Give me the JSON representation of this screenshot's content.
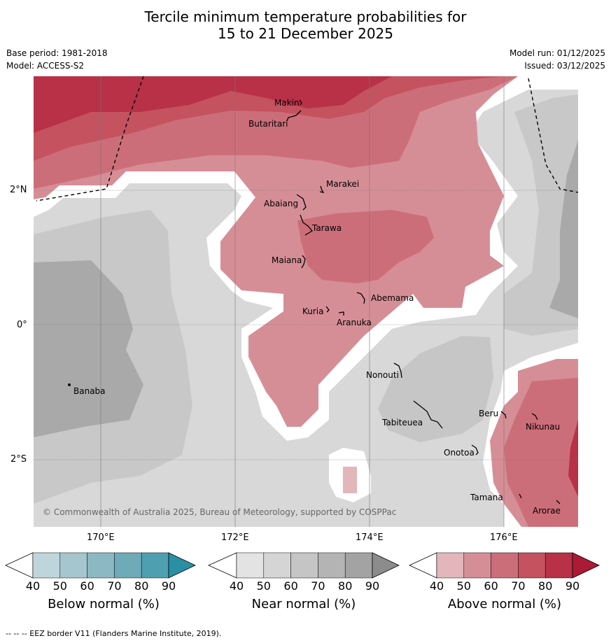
{
  "title": {
    "line1": "Tercile minimum temperature probabilities for",
    "line2": "15 to 21 December 2025"
  },
  "meta": {
    "base_period": "Base period: 1981-2018",
    "model": "Model: ACCESS-S2",
    "model_run": "Model run: 01/12/2025",
    "issued": "Issued: 03/12/2025"
  },
  "axes": {
    "lat_labels": [
      "2°N",
      "0°",
      "2°S"
    ],
    "lon_labels": [
      "170°E",
      "172°E",
      "174°E",
      "176°E"
    ]
  },
  "places": [
    "Makin",
    "Butaritari",
    "Marakei",
    "Abaiang",
    "Tarawa",
    "Maiana",
    "Abemama",
    "Kuria",
    "Aranuka",
    "Banaba",
    "Nonouti",
    "Tabiteuea",
    "Beru",
    "Nikunau",
    "Onotoa",
    "Tamana",
    "Arorae"
  ],
  "copyright": "© Commonwealth of Australia 2025, Bureau of Meteorology, supported by COSPPac",
  "colorbars": [
    {
      "label": "Below normal (%)",
      "ticks": [
        "40",
        "50",
        "60",
        "70",
        "80",
        "90"
      ],
      "colors": [
        "#bfd5dc",
        "#a5c6cf",
        "#8bb8c3",
        "#6eaab8",
        "#4ea0b0",
        "#2b8fa3"
      ]
    },
    {
      "label": "Near normal (%)",
      "ticks": [
        "40",
        "50",
        "60",
        "70",
        "80",
        "90"
      ],
      "colors": [
        "#e3e3e3",
        "#d5d5d5",
        "#c5c5c5",
        "#b4b4b4",
        "#a3a3a3",
        "#8c8c8c"
      ]
    },
    {
      "label": "Above normal (%)",
      "ticks": [
        "40",
        "50",
        "60",
        "70",
        "80",
        "90"
      ],
      "colors": [
        "#e2b6bb",
        "#d68e96",
        "#cc6e79",
        "#c4525f",
        "#b83146",
        "#ad1a35"
      ]
    }
  ],
  "footnote": "--  --  -- EEZ border V11 (Flanders Marine Institute, 2019)."
}
